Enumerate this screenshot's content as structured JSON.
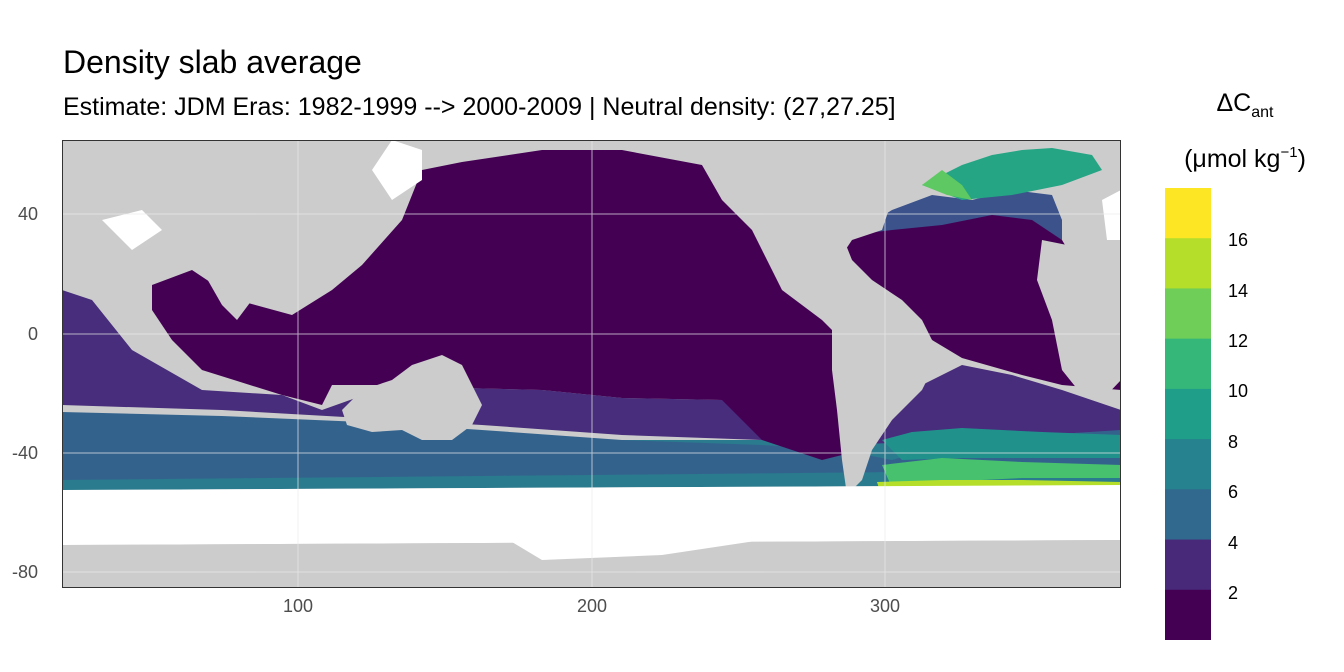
{
  "title": "Density slab average",
  "subtitle": "Estimate: JDM Eras: 1982-1999 --> 2000-2009 | Neutral density: (27,27.25]",
  "axes": {
    "x_ticks": [
      "100",
      "200",
      "300"
    ],
    "y_ticks": [
      "40",
      "0",
      "-40",
      "-80"
    ]
  },
  "legend": {
    "title_symbol": "ΔC",
    "title_subscript": "ant",
    "unit_prefix": "(μmol kg",
    "unit_superscript": "−1",
    "unit_suffix": ")",
    "labels": [
      "16",
      "14",
      "12",
      "10",
      "8",
      "6",
      "4",
      "2"
    ],
    "colors": [
      "#fde725",
      "#b5de2b",
      "#6ece58",
      "#35b779",
      "#1f9e89",
      "#26828e",
      "#31688e",
      "#3e4989",
      "#482878",
      "#440154"
    ]
  },
  "colors": {
    "land": "#cccccc",
    "no_data": "#ffffff",
    "panel_border": "#333333"
  }
}
